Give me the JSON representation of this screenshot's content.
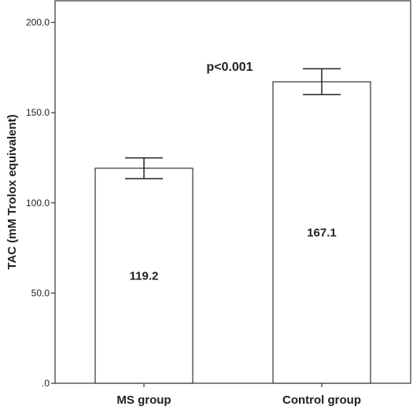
{
  "chart_data": {
    "type": "bar",
    "categories": [
      "MS group",
      "Control group"
    ],
    "values": [
      119.2,
      167.1
    ],
    "data_labels": [
      "119.2",
      "167.1"
    ],
    "error_bars": [
      {
        "low": 113.4,
        "high": 124.9
      },
      {
        "low": 160.0,
        "high": 174.3
      }
    ],
    "ylabel": "TAC  (mM Trolox equivalent)",
    "xlabel": "",
    "ylim": [
      0,
      212
    ],
    "yticks": [
      0,
      50,
      100,
      150,
      200
    ],
    "ytick_labels": [
      ".0",
      "50.0",
      "100.0",
      "150.0",
      "200.0"
    ],
    "annotation": "p<0.001",
    "bar_fill": "#ffffff",
    "bar_stroke": "#333333",
    "grid": false
  }
}
